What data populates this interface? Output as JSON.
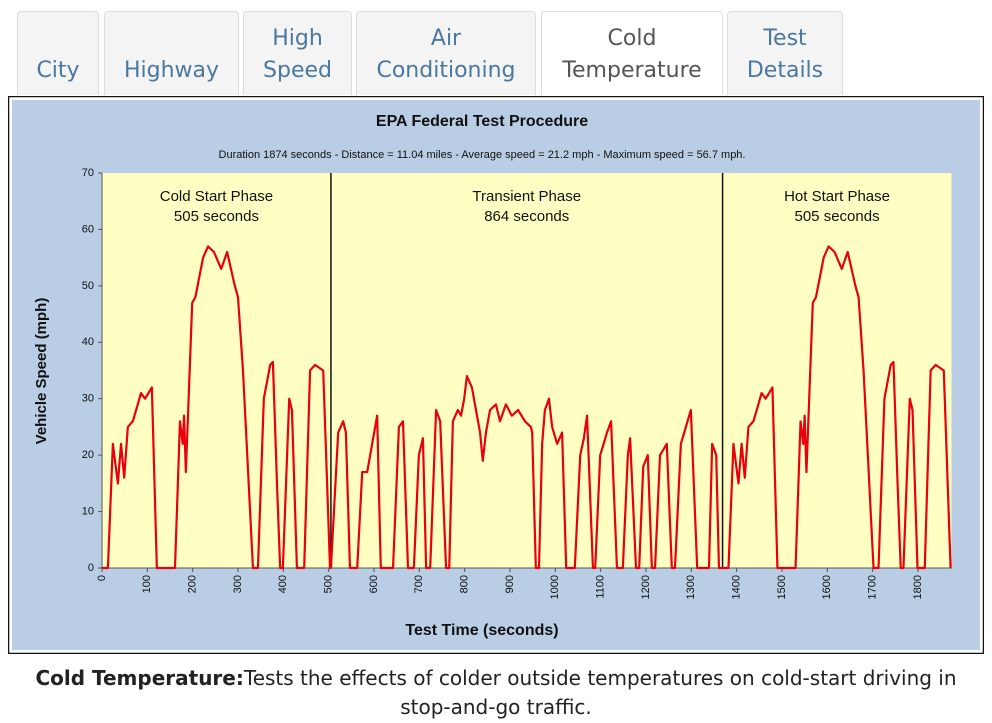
{
  "tabs": [
    {
      "lines": [
        "City"
      ]
    },
    {
      "lines": [
        "Highway"
      ]
    },
    {
      "lines": [
        "High",
        "Speed"
      ]
    },
    {
      "lines": [
        "Air",
        "Conditioning"
      ]
    },
    {
      "lines": [
        "Cold",
        "Temperature"
      ],
      "active": true
    },
    {
      "lines": [
        "Test",
        "Details"
      ]
    }
  ],
  "chart_data": {
    "type": "line",
    "title": "EPA Federal Test Procedure",
    "subtitle": "Duration 1874 seconds - Distance = 11.04 miles - Average speed = 21.2 mph - Maximum speed = 56.7 mph.",
    "x_label": "Test Time (seconds)",
    "y_label": "Vehicle Speed (mph)",
    "xlim": [
      0,
      1874
    ],
    "ylim": [
      0,
      70
    ],
    "xticks": [
      0,
      100,
      200,
      300,
      400,
      500,
      600,
      700,
      800,
      900,
      1000,
      1100,
      1200,
      1300,
      1400,
      1500,
      1600,
      1700,
      1800
    ],
    "yticks": [
      0,
      10,
      20,
      30,
      40,
      50,
      60,
      70
    ],
    "phases": [
      {
        "name": "Cold Start Phase",
        "duration": "505 seconds",
        "start": 0,
        "end": 505
      },
      {
        "name": "Transient Phase",
        "duration": "864 seconds",
        "start": 505,
        "end": 1369
      },
      {
        "name": "Hot Start Phase",
        "duration": "505 seconds",
        "start": 1369,
        "end": 1874
      }
    ],
    "x": [
      0,
      13,
      24,
      35,
      42,
      49,
      57,
      68,
      79,
      86,
      95,
      110,
      121,
      161,
      172,
      178,
      181,
      185,
      199,
      206,
      223,
      234,
      247,
      263,
      276,
      293,
      300,
      311,
      333,
      344,
      357,
      371,
      377,
      386,
      393,
      399,
      413,
      419,
      430,
      446,
      459,
      470,
      488,
      503,
      505,
      521,
      532,
      538,
      547,
      563,
      574,
      585,
      596,
      607,
      615,
      642,
      655,
      664,
      675,
      688,
      699,
      708,
      715,
      724,
      737,
      746,
      759,
      766,
      774,
      785,
      792,
      799,
      805,
      816,
      825,
      834,
      840,
      847,
      856,
      869,
      878,
      891,
      904,
      918,
      933,
      946,
      949,
      957,
      964,
      971,
      977,
      986,
      993,
      1004,
      1015,
      1024,
      1043,
      1055,
      1063,
      1070,
      1083,
      1088,
      1099,
      1114,
      1123,
      1136,
      1149,
      1160,
      1165,
      1178,
      1185,
      1194,
      1204,
      1213,
      1220,
      1231,
      1246,
      1257,
      1264,
      1277,
      1288,
      1299,
      1313,
      1339,
      1346,
      1355,
      1361,
      1369,
      1382,
      1393,
      1404,
      1411,
      1418,
      1426,
      1437,
      1448,
      1455,
      1464,
      1479,
      1490,
      1530,
      1541,
      1547,
      1550,
      1554,
      1568,
      1575,
      1592,
      1603,
      1616,
      1632,
      1645,
      1662,
      1669,
      1680,
      1702,
      1713,
      1726,
      1740,
      1746,
      1755,
      1762,
      1768,
      1782,
      1788,
      1799,
      1815,
      1828,
      1839,
      1857,
      1872
    ],
    "series": [
      {
        "name": "Vehicle Speed",
        "color": "#e8000c",
        "values": [
          0,
          0,
          22,
          15,
          22,
          16,
          25,
          26,
          29,
          31,
          30,
          32,
          0,
          0,
          26,
          22,
          27,
          17,
          47,
          48,
          55,
          57,
          56,
          53,
          56,
          50,
          48,
          35,
          0,
          0,
          30,
          36,
          36.5,
          15,
          0,
          0,
          30,
          28,
          0,
          0,
          35,
          36,
          35,
          0,
          0,
          24,
          26,
          24,
          0,
          0,
          17,
          17,
          22,
          27,
          0,
          0,
          25,
          26,
          0,
          0,
          20,
          23,
          0,
          0,
          28,
          26,
          0,
          0,
          26,
          28,
          27,
          30,
          34,
          32,
          28,
          24,
          19,
          24,
          28,
          29,
          26,
          29,
          27,
          28,
          26,
          25,
          24,
          0,
          0,
          22,
          28,
          30,
          25,
          22,
          24,
          0,
          0,
          20,
          23,
          27,
          0,
          0,
          20,
          24,
          26,
          0,
          0,
          20,
          23,
          0,
          0,
          18,
          20,
          0,
          0,
          20,
          22,
          0,
          0,
          22,
          25,
          28,
          0,
          0,
          22,
          20,
          0,
          0,
          0,
          22,
          15,
          22,
          16,
          25,
          26,
          29,
          31,
          30,
          32,
          0,
          0,
          26,
          22,
          27,
          17,
          47,
          48,
          55,
          57,
          56,
          53,
          56,
          50,
          48,
          35,
          0,
          0,
          30,
          36,
          36.5,
          15,
          0,
          0,
          30,
          28,
          0,
          0,
          35,
          36,
          35,
          0
        ]
      }
    ]
  },
  "caption": {
    "label": "Cold Temperature:",
    "text": "Tests the effects of colder outside temperatures on cold-start driving in stop-and-go traffic."
  }
}
